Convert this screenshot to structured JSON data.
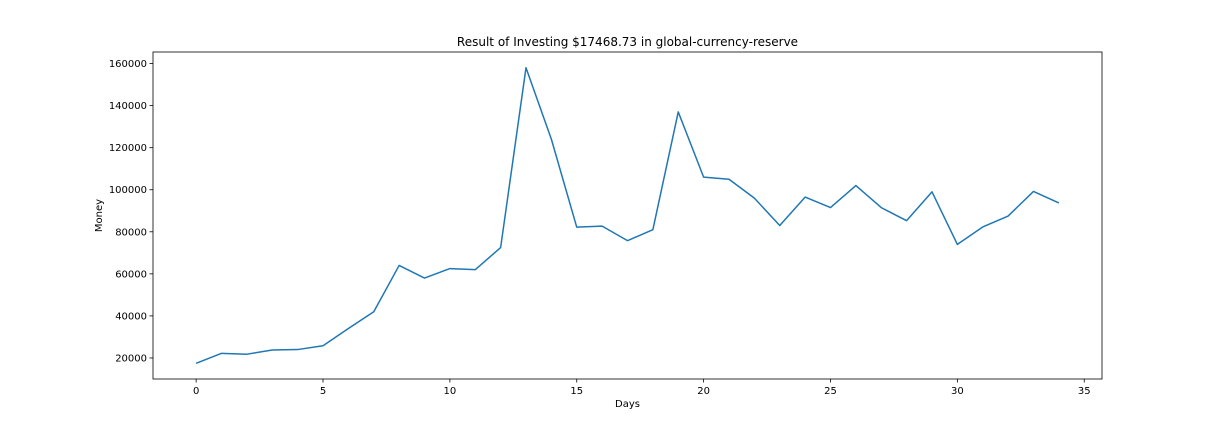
{
  "chart_data": {
    "type": "line",
    "title": "Result of Investing $17468.73 in global-currency-reserve",
    "xlabel": "Days",
    "ylabel": "Money",
    "xlim": [
      -1.7,
      35.7
    ],
    "ylim": [
      10000,
      165500
    ],
    "x_ticks": [
      0,
      5,
      10,
      15,
      20,
      25,
      30,
      35
    ],
    "y_ticks": [
      20000,
      40000,
      60000,
      80000,
      100000,
      120000,
      140000,
      160000
    ],
    "grid": false,
    "legend": "none",
    "line_color": "#1f77b4",
    "series": [
      {
        "x": [
          0,
          1,
          2,
          3,
          4,
          5,
          6,
          7,
          8,
          9,
          10,
          11,
          12,
          13,
          14,
          15,
          16,
          17,
          18,
          19,
          20,
          21,
          22,
          23,
          24,
          25,
          26,
          27,
          28,
          29,
          30,
          31,
          32,
          33,
          34
        ],
        "y": [
          17469,
          22200,
          21800,
          23800,
          24000,
          25800,
          34000,
          42000,
          64000,
          58000,
          62500,
          62000,
          72500,
          158000,
          124000,
          82200,
          82700,
          75800,
          81000,
          137000,
          106000,
          105000,
          96000,
          83000,
          96500,
          91500,
          102000,
          91500,
          85300,
          99000,
          74000,
          82300,
          87500,
          99200,
          93700
        ]
      }
    ]
  }
}
